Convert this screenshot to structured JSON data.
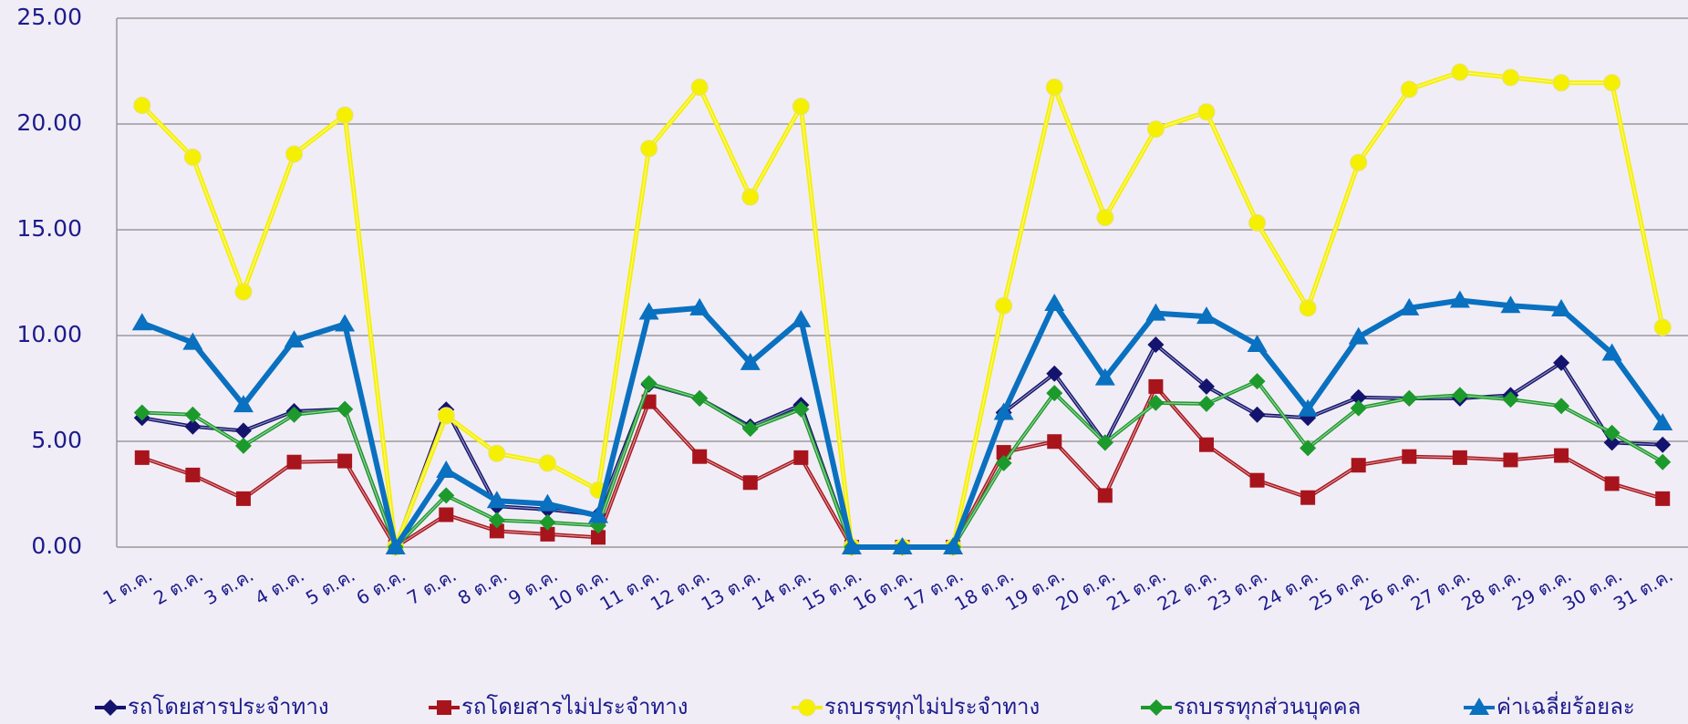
{
  "chart_data": {
    "type": "line",
    "categories": [
      "1 ต.ค.",
      "2 ต.ค.",
      "3 ต.ค.",
      "4 ต.ค.",
      "5 ต.ค.",
      "6 ต.ค.",
      "7 ต.ค.",
      "8 ต.ค.",
      "9 ต.ค.",
      "10 ต.ค.",
      "11 ต.ค.",
      "12 ต.ค.",
      "13 ต.ค.",
      "14 ต.ค.",
      "15 ต.ค.",
      "16 ต.ค.",
      "17 ต.ค.",
      "18 ต.ค.",
      "19 ต.ค.",
      "20 ต.ค.",
      "21 ต.ค.",
      "22 ต.ค.",
      "23 ต.ค.",
      "24 ต.ค.",
      "25 ต.ค.",
      "26 ต.ค.",
      "27 ต.ค.",
      "28 ต.ค.",
      "29 ต.ค.",
      "30 ต.ค.",
      "31 ต.ค."
    ],
    "series": [
      {
        "name": "รถโดยสารประจำทาง",
        "color": "#14146e",
        "marker": "diamond",
        "values": [
          6.11,
          5.7,
          5.5,
          6.42,
          6.52,
          0,
          6.5,
          1.93,
          1.78,
          1.53,
          7.69,
          7.03,
          5.7,
          6.72,
          0,
          0,
          0,
          6.36,
          8.2,
          4.94,
          9.57,
          7.59,
          6.26,
          6.11,
          7.08,
          7.03,
          7.03,
          7.18,
          8.71,
          4.94,
          4.84
        ]
      },
      {
        "name": "รถโดยสารไม่ประจำทาง",
        "color": "#a8141c",
        "marker": "square",
        "values": [
          4.23,
          3.41,
          2.29,
          4.02,
          4.07,
          0,
          1.53,
          0.76,
          0.61,
          0.46,
          6.87,
          4.28,
          3.05,
          4.23,
          0,
          0,
          0,
          4.48,
          4.99,
          2.44,
          7.59,
          4.84,
          3.16,
          2.34,
          3.87,
          4.28,
          4.23,
          4.12,
          4.33,
          3.0,
          2.29
        ]
      },
      {
        "name": "รถบรรทุกไม่ประจำทาง",
        "color": "#f5f000",
        "marker": "circle",
        "values": [
          20.88,
          18.43,
          12.07,
          18.58,
          20.42,
          0,
          6.21,
          4.43,
          3.97,
          2.7,
          18.84,
          21.74,
          16.55,
          20.83,
          0,
          0,
          0,
          11.41,
          21.74,
          15.58,
          19.76,
          20.57,
          15.33,
          11.3,
          18.18,
          21.64,
          22.45,
          22.2,
          21.95,
          21.95,
          10.39
        ]
      },
      {
        "name": "รถบรรทุกส่วนบุคคล",
        "color": "#1c9a2c",
        "marker": "diamond",
        "values": [
          6.36,
          6.26,
          4.79,
          6.26,
          6.52,
          0,
          2.44,
          1.27,
          1.17,
          1.02,
          7.74,
          7.03,
          5.6,
          6.52,
          0,
          0,
          0,
          3.97,
          7.28,
          4.94,
          6.82,
          6.77,
          7.84,
          4.68,
          6.57,
          7.03,
          7.18,
          6.98,
          6.67,
          5.4,
          4.02
        ]
      },
      {
        "name": "ค่าเฉลี่ยร้อยละ",
        "color": "#0a70c0",
        "marker": "triangle",
        "values": [
          10.59,
          9.67,
          6.72,
          9.78,
          10.54,
          0,
          3.62,
          2.19,
          2.04,
          1.48,
          11.1,
          11.3,
          8.71,
          10.74,
          0,
          0,
          0,
          6.36,
          11.51,
          7.99,
          11.05,
          10.9,
          9.57,
          6.52,
          9.93,
          11.3,
          11.66,
          11.41,
          11.25,
          9.16,
          5.86
        ]
      }
    ],
    "ylim": [
      0,
      25
    ],
    "yticks": [
      {
        "value": 0,
        "label": "0.00"
      },
      {
        "value": 5,
        "label": "5.00"
      },
      {
        "value": 10,
        "label": "10.00"
      },
      {
        "value": 15,
        "label": "15.00"
      },
      {
        "value": 20,
        "label": "20.00"
      },
      {
        "value": 25,
        "label": "25.00"
      }
    ],
    "grid": true,
    "legend": "bottom"
  }
}
